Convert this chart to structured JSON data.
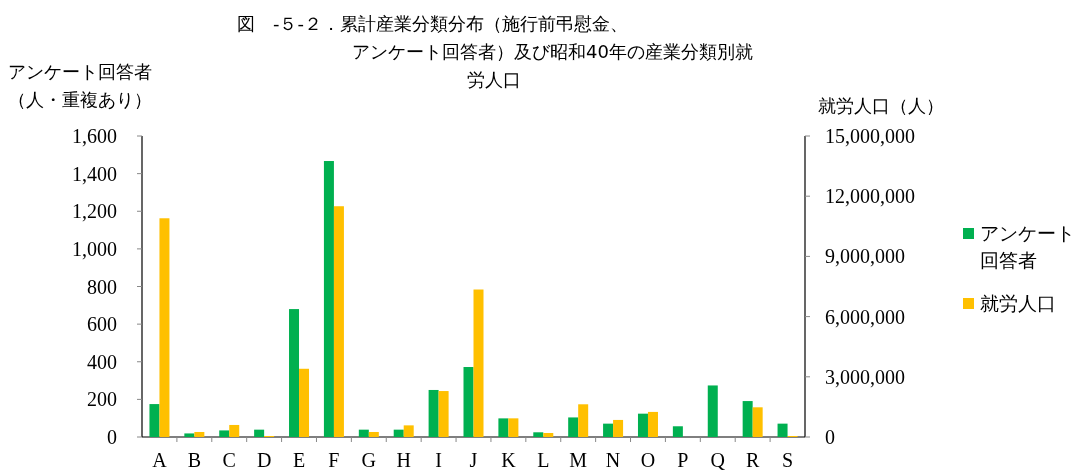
{
  "chart_data": {
    "type": "bar",
    "title": "図　-５-２．累計産業分類分布（施行前弔慰金、アンケート回答者）及び昭和40年の産業分類別就労人口",
    "ylabel": "アンケート回答者（人・重複あり）",
    "y2label": "就労人口（人）",
    "categories": [
      "A",
      "B",
      "C",
      "D",
      "E",
      "F",
      "G",
      "H",
      "I",
      "J",
      "K",
      "L",
      "M",
      "N",
      "O",
      "P",
      "Q",
      "R",
      "S"
    ],
    "series": [
      {
        "name": "アンケート回答者",
        "color": "#00b050",
        "values": [
          175,
          19,
          35,
          39,
          680,
          1467,
          39,
          39,
          250,
          372,
          99,
          25,
          104,
          71,
          124,
          57,
          274,
          191,
          71
        ]
      },
      {
        "name": "就労人口",
        "color": "#ffc000",
        "axis": "y2",
        "values": [
          10900000,
          250000,
          600000,
          50000,
          3400000,
          11500000,
          250000,
          580000,
          2290000,
          7350000,
          930000,
          200000,
          1630000,
          850000,
          1250000,
          null,
          null,
          1480000,
          50000
        ]
      }
    ],
    "ylim": [
      0,
      1600
    ],
    "yticks": [
      0,
      200,
      400,
      600,
      800,
      {
        "value": 1000,
        "label": "1,000"
      },
      {
        "value": 1200,
        "label": "1,200"
      },
      {
        "value": 1400,
        "label": "1,400"
      },
      {
        "value": 1600,
        "label": "1,600"
      }
    ],
    "y2lim": [
      0,
      15000000
    ],
    "y2ticks": [
      0,
      {
        "value": 3000000,
        "label": "3,000,000"
      },
      {
        "value": 6000000,
        "label": "6,000,000"
      },
      {
        "value": 9000000,
        "label": "9,000,000"
      },
      {
        "value": 12000000,
        "label": "12,000,000"
      },
      {
        "value": 15000000,
        "label": "15,000,000"
      }
    ],
    "grid": false,
    "legend": "right"
  }
}
